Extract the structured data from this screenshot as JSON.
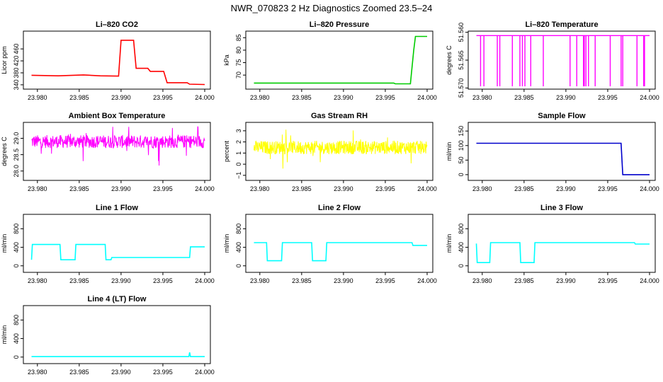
{
  "page_title": "NWR_070823  2 Hz Diagnostics Zoomed 23.5–24",
  "chart_data": [
    {
      "type": "line",
      "title": "Li–820 CO2",
      "ylabel": "Licor ppm",
      "xlim": [
        23.979,
        24.0
      ],
      "ylim": [
        335,
        510
      ],
      "xticks": [
        23.98,
        23.985,
        23.99,
        23.995,
        24.0
      ],
      "xtick_labels": [
        "23.980",
        "23.985",
        "23.990",
        "23.995",
        "24.000"
      ],
      "yticks": [
        340,
        380,
        420,
        460
      ],
      "ytick_labels": [
        "340",
        "380",
        "420",
        "460"
      ],
      "color": "#ff0000",
      "series": [
        {
          "x": [
            23.9793,
            23.9825,
            23.9855,
            23.9875,
            23.9897,
            23.99,
            23.9915,
            23.9918,
            23.9932,
            23.9935,
            23.9951,
            23.9955,
            23.9979,
            23.9982,
            24.0
          ],
          "y": [
            372,
            370,
            373,
            370,
            369,
            489,
            489,
            395,
            395,
            385,
            385,
            347,
            347,
            342,
            341
          ]
        }
      ]
    },
    {
      "type": "line",
      "title": "Li–820 Pressure",
      "ylabel": "kPa",
      "xlim": [
        23.979,
        24.0
      ],
      "ylim": [
        65.5,
        86.5
      ],
      "xticks": [
        23.98,
        23.985,
        23.99,
        23.995,
        24.0
      ],
      "xtick_labels": [
        "23.980",
        "23.985",
        "23.990",
        "23.995",
        "24.000"
      ],
      "yticks": [
        70,
        75,
        80,
        85
      ],
      "ytick_labels": [
        "70",
        "75",
        "80",
        "85"
      ],
      "color": "#00cc00",
      "series": [
        {
          "x": [
            23.9793,
            23.996,
            23.9962,
            23.998,
            23.9981,
            23.9984,
            23.9986,
            24.0
          ],
          "y": [
            66.8,
            66.8,
            66.5,
            66.5,
            70,
            80,
            85.5,
            85.5
          ]
        }
      ]
    },
    {
      "type": "line",
      "title": "Li–820 Temperature",
      "ylabel": "degrees C",
      "xlim": [
        23.979,
        24.0
      ],
      "ylim": [
        51.5697,
        51.5603
      ],
      "xticks": [
        23.98,
        23.985,
        23.99,
        23.995,
        24.0
      ],
      "xtick_labels": [
        "23.980",
        "23.985",
        "23.990",
        "23.995",
        "24.000"
      ],
      "yticks": [
        51.57,
        51.565,
        51.56
      ],
      "ytick_labels": [
        "51.570",
        "51.565",
        "51.560"
      ],
      "color": "#ff00ff",
      "baseline": 51.5606,
      "drops": [
        23.9798,
        23.9802,
        23.9818,
        23.9821,
        23.9836,
        23.9845,
        23.9848,
        23.9851,
        23.9858,
        23.9873,
        23.9905,
        23.9913,
        23.9921,
        23.9922,
        23.9924,
        23.9927,
        23.9935,
        23.9953,
        23.9966,
        23.9968,
        23.9985,
        23.9993,
        23.9994
      ],
      "drop_low": 51.5697
    },
    {
      "type": "line",
      "title": "Ambient Box Temperature",
      "ylabel": "degrees C",
      "xlim": [
        23.979,
        24.0
      ],
      "ylim": [
        27.8,
        29.4
      ],
      "xticks": [
        23.98,
        23.985,
        23.99,
        23.995,
        24.0
      ],
      "xtick_labels": [
        "23.980",
        "23.985",
        "23.990",
        "23.995",
        "24.000"
      ],
      "yticks": [
        28.0,
        28.5,
        29.0
      ],
      "ytick_labels": [
        "28.0",
        "28.5",
        "29.0"
      ],
      "color": "#ff00ff",
      "noise": {
        "center": 28.9,
        "spread": 0.2,
        "min": 27.85,
        "max": 29.35
      }
    },
    {
      "type": "line",
      "title": "Gas Stream RH",
      "ylabel": "percent",
      "xlim": [
        23.979,
        24.0
      ],
      "ylim": [
        -1.2,
        3.5
      ],
      "xticks": [
        23.98,
        23.985,
        23.99,
        23.995,
        24.0
      ],
      "xtick_labels": [
        "23.980",
        "23.985",
        "23.990",
        "23.995",
        "24.000"
      ],
      "yticks": [
        -1,
        0,
        1,
        2,
        3
      ],
      "ytick_labels": [
        "−1",
        "0",
        "1",
        "2",
        "3"
      ],
      "color": "#ffff00",
      "noise": {
        "center": 1.5,
        "spread": 0.6,
        "min": -1.0,
        "max": 3.1
      }
    },
    {
      "type": "line",
      "title": "Sample Flow",
      "ylabel": "ml/min",
      "xlim": [
        23.979,
        24.0
      ],
      "ylim": [
        -10,
        170
      ],
      "xticks": [
        23.98,
        23.985,
        23.99,
        23.995,
        24.0
      ],
      "xtick_labels": [
        "23.980",
        "23.985",
        "23.990",
        "23.995",
        "24.000"
      ],
      "yticks": [
        0,
        50,
        100,
        150
      ],
      "ytick_labels": [
        "0",
        "50",
        "100",
        "150"
      ],
      "color": "#0000cc",
      "series": [
        {
          "x": [
            23.9793,
            23.9966,
            23.9968,
            24.0
          ],
          "y": [
            108,
            108,
            0,
            0
          ]
        }
      ]
    },
    {
      "type": "line",
      "title": "Line 1 Flow",
      "ylabel": "ml/min",
      "xlim": [
        23.979,
        24.0
      ],
      "ylim": [
        -80,
        1050
      ],
      "xticks": [
        23.98,
        23.985,
        23.99,
        23.995,
        24.0
      ],
      "xtick_labels": [
        "23.980",
        "23.985",
        "23.990",
        "23.995",
        "24.000"
      ],
      "yticks": [
        0,
        400,
        800
      ],
      "ytick_labels": [
        "0",
        "400",
        "800"
      ],
      "color": "#00ffff",
      "series": [
        {
          "x": [
            23.9793,
            23.9794,
            23.9827,
            23.9828,
            23.9845,
            23.9846,
            23.9881,
            23.9882,
            23.9888,
            23.9889,
            23.9982,
            23.9983,
            24.0
          ],
          "y": [
            130,
            460,
            460,
            130,
            130,
            460,
            460,
            130,
            130,
            180,
            180,
            410,
            410
          ]
        }
      ]
    },
    {
      "type": "line",
      "title": "Line 2 Flow",
      "ylabel": "ml/min",
      "xlim": [
        23.979,
        24.0
      ],
      "ylim": [
        -80,
        1050
      ],
      "xticks": [
        23.98,
        23.985,
        23.99,
        23.995,
        24.0
      ],
      "xtick_labels": [
        "23.980",
        "23.985",
        "23.990",
        "23.995",
        "24.000"
      ],
      "yticks": [
        0,
        400,
        800
      ],
      "ytick_labels": [
        "0",
        "400",
        "800"
      ],
      "color": "#00ffff",
      "series": [
        {
          "x": [
            23.9793,
            23.9808,
            23.9809,
            23.9826,
            23.9827,
            23.9862,
            23.9863,
            23.9879,
            23.988,
            23.9982,
            23.9983,
            24.0
          ],
          "y": [
            500,
            500,
            110,
            110,
            500,
            500,
            110,
            110,
            500,
            500,
            440,
            440
          ]
        }
      ]
    },
    {
      "type": "line",
      "title": "Line 3 Flow",
      "ylabel": "ml/min",
      "xlim": [
        23.979,
        24.0
      ],
      "ylim": [
        -80,
        1050
      ],
      "xticks": [
        23.98,
        23.985,
        23.99,
        23.995,
        24.0
      ],
      "xtick_labels": [
        "23.980",
        "23.985",
        "23.990",
        "23.995",
        "24.000"
      ],
      "yticks": [
        0,
        400,
        800
      ],
      "ytick_labels": [
        "0",
        "400",
        "800"
      ],
      "color": "#00ffff",
      "series": [
        {
          "x": [
            23.9793,
            23.9794,
            23.9809,
            23.981,
            23.9845,
            23.9846,
            23.9862,
            23.9863,
            23.9982,
            23.9983,
            24.0
          ],
          "y": [
            480,
            70,
            70,
            500,
            500,
            70,
            70,
            500,
            500,
            470,
            470
          ]
        }
      ]
    },
    {
      "type": "line",
      "title": "Line 4 (LT) Flow",
      "ylabel": "ml/min",
      "xlim": [
        23.979,
        24.0
      ],
      "ylim": [
        -80,
        1050
      ],
      "xticks": [
        23.98,
        23.985,
        23.99,
        23.995,
        24.0
      ],
      "xtick_labels": [
        "23.980",
        "23.985",
        "23.990",
        "23.995",
        "24.000"
      ],
      "yticks": [
        0,
        400,
        800
      ],
      "ytick_labels": [
        "0",
        "400",
        "800"
      ],
      "color": "#00ffff",
      "series": [
        {
          "x": [
            23.9793,
            23.9981,
            23.9982,
            23.9983,
            24.0
          ],
          "y": [
            10,
            10,
            100,
            10,
            10
          ]
        }
      ]
    }
  ]
}
